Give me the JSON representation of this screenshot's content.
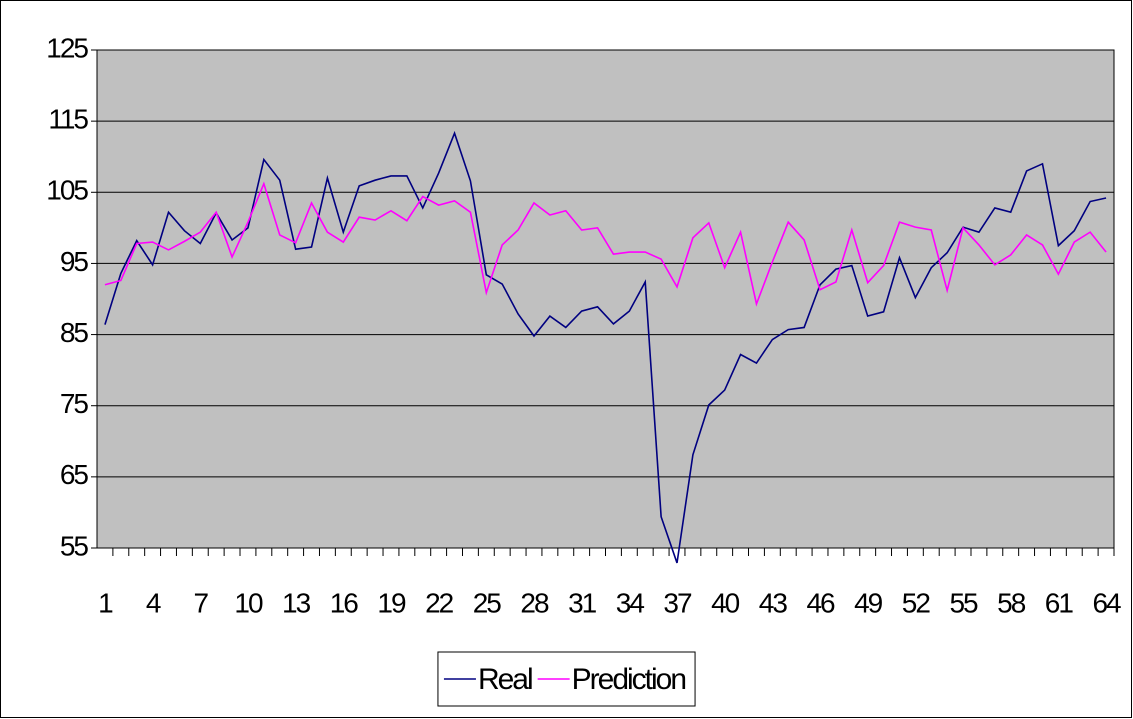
{
  "chart_data": {
    "type": "line",
    "categories": [
      1,
      null,
      null,
      4,
      null,
      null,
      7,
      null,
      null,
      10,
      null,
      null,
      13,
      null,
      null,
      16,
      null,
      null,
      19,
      null,
      null,
      22,
      null,
      null,
      25,
      null,
      null,
      28,
      null,
      null,
      31,
      null,
      null,
      34,
      null,
      null,
      37,
      null,
      null,
      40,
      null,
      null,
      43,
      null,
      null,
      46,
      null,
      null,
      49,
      null,
      null,
      52,
      null,
      null,
      55,
      null,
      null,
      58,
      null,
      null,
      61,
      null,
      null,
      64
    ],
    "series": [
      {
        "name": "Real",
        "color": "#000080",
        "values": [
          86.4,
          93.6,
          98.2,
          94.8,
          102.2,
          99.6,
          97.8,
          102.1,
          98.3,
          100,
          109.6,
          106.7,
          97,
          97.3,
          107,
          99.4,
          105.9,
          106.7,
          107.3,
          107.3,
          102.8,
          107.7,
          113.3,
          106.6,
          93.4,
          92.1,
          87.9,
          84.8,
          87.6,
          86,
          88.3,
          88.9,
          86.5,
          88.3,
          92.4,
          59.4,
          52.9,
          68.1,
          75.1,
          77.2,
          82.2,
          81,
          84.3,
          85.7,
          86,
          92,
          94.2,
          94.7,
          87.6,
          88.2,
          95.8,
          90.2,
          94.4,
          96.5,
          100.1,
          99.4,
          102.8,
          102.2,
          108,
          109,
          97.5,
          99.6,
          103.7,
          104.2
        ]
      },
      {
        "name": "Prediction",
        "color": "#ff00ff",
        "values": [
          92,
          92.6,
          97.8,
          98,
          96.9,
          98.1,
          99.4,
          102.2,
          95.9,
          100.8,
          106.2,
          99,
          97.9,
          103.5,
          99.4,
          98,
          101.5,
          101.1,
          102.4,
          101,
          104.4,
          103.2,
          103.8,
          102.2,
          90.9,
          97.6,
          99.7,
          103.5,
          101.8,
          102.4,
          99.7,
          100,
          96.3,
          96.6,
          96.6,
          95.6,
          91.7,
          98.6,
          100.7,
          94.4,
          99.4,
          89.3,
          95.2,
          100.8,
          98.3,
          91.3,
          92.4,
          99.7,
          92.3,
          94.7,
          100.8,
          100.1,
          99.7,
          91.2,
          100,
          97.6,
          94.8,
          96.2,
          99,
          97.6,
          93.5,
          98,
          99.4,
          96.6
        ]
      }
    ],
    "ylim": [
      55,
      125
    ],
    "yticks": [
      55,
      65,
      75,
      85,
      95,
      105,
      115,
      125
    ],
    "grid": true,
    "legend": "bottom",
    "background": "#c0c0c0"
  }
}
